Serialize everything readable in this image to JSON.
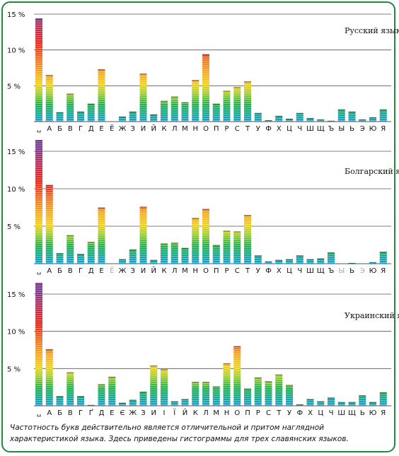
{
  "caption": "Частотность букв действительно является отличительной и притом наглядной характеристикой языка. Здесь приведены гистограммы для трех славянских языков.",
  "colors": {
    "frame": "#1e8a3c",
    "grid": "#555555",
    "bar_low": "#1c9fd6",
    "bar_mid": "#f2d21a",
    "bar_high": "#e8261c",
    "bar_top": "#7a3a8f"
  },
  "chart_data": [
    {
      "type": "bar",
      "title": "Русский язык",
      "ylim": [
        0,
        15
      ],
      "yticks": [
        "15 %",
        "10 %",
        "5 %"
      ],
      "categories": [
        "␣",
        "А",
        "Б",
        "В",
        "Г",
        "Д",
        "Е",
        "Ё",
        "Ж",
        "З",
        "И",
        "Й",
        "К",
        "Л",
        "М",
        "Н",
        "О",
        "П",
        "Р",
        "С",
        "Т",
        "У",
        "Ф",
        "Х",
        "Ц",
        "Ч",
        "Ш",
        "Щ",
        "Ъ",
        "Ы",
        "Ь",
        "Э",
        "Ю",
        "Я"
      ],
      "muted": [],
      "values": [
        14.4,
        6.5,
        1.3,
        3.9,
        1.4,
        2.5,
        7.3,
        0.0,
        0.7,
        1.4,
        6.7,
        1.0,
        2.9,
        3.5,
        2.7,
        5.8,
        9.4,
        2.5,
        4.3,
        4.8,
        5.6,
        1.2,
        0.2,
        0.8,
        0.4,
        1.2,
        0.5,
        0.3,
        0.02,
        1.7,
        1.4,
        0.3,
        0.6,
        1.7
      ]
    },
    {
      "type": "bar",
      "title": "Болгарский язык",
      "ylim": [
        0,
        15
      ],
      "yticks": [
        "15 %",
        "10 %",
        "5 %"
      ],
      "categories": [
        "␣",
        "А",
        "Б",
        "В",
        "Г",
        "Д",
        "Е",
        "Ё",
        "Ж",
        "З",
        "И",
        "Й",
        "К",
        "Л",
        "М",
        "Н",
        "О",
        "П",
        "Р",
        "С",
        "Т",
        "У",
        "Ф",
        "Х",
        "Ц",
        "Ч",
        "Ш",
        "Щ",
        "Ъ",
        "Ы",
        "Ь",
        "Э",
        "Ю",
        "Я"
      ],
      "muted": [
        "Ё",
        "Ы",
        "Э"
      ],
      "values": [
        16.5,
        10.5,
        1.4,
        3.8,
        1.3,
        2.9,
        7.5,
        0.0,
        0.6,
        1.9,
        7.6,
        0.5,
        2.7,
        2.8,
        2.1,
        6.1,
        7.3,
        2.5,
        4.4,
        4.3,
        6.5,
        1.1,
        0.3,
        0.5,
        0.6,
        1.1,
        0.6,
        0.7,
        1.5,
        0.0,
        0.1,
        0.0,
        0.2,
        1.6
      ]
    },
    {
      "type": "bar",
      "title": "Украинский язык",
      "ylim": [
        0,
        15
      ],
      "yticks": [
        "15 %",
        "10 %",
        "5 %"
      ],
      "categories": [
        "␣",
        "А",
        "Б",
        "В",
        "Г",
        "Ґ",
        "Д",
        "Е",
        "Є",
        "Ж",
        "З",
        "И",
        "І",
        "Ї",
        "Й",
        "К",
        "Л",
        "М",
        "Н",
        "О",
        "П",
        "Р",
        "С",
        "Т",
        "У",
        "Ф",
        "Х",
        "Ц",
        "Ч",
        "Ш",
        "Щ",
        "Ь",
        "Ю",
        "Я"
      ],
      "muted": [],
      "values": [
        16.5,
        7.6,
        1.3,
        4.5,
        1.3,
        0.02,
        2.9,
        3.9,
        0.4,
        0.8,
        1.9,
        5.4,
        4.9,
        0.6,
        0.9,
        3.2,
        3.2,
        2.6,
        5.7,
        8.0,
        2.3,
        3.8,
        3.3,
        4.2,
        2.8,
        0.2,
        0.9,
        0.6,
        1.1,
        0.5,
        0.5,
        1.4,
        0.5,
        1.8
      ]
    }
  ]
}
